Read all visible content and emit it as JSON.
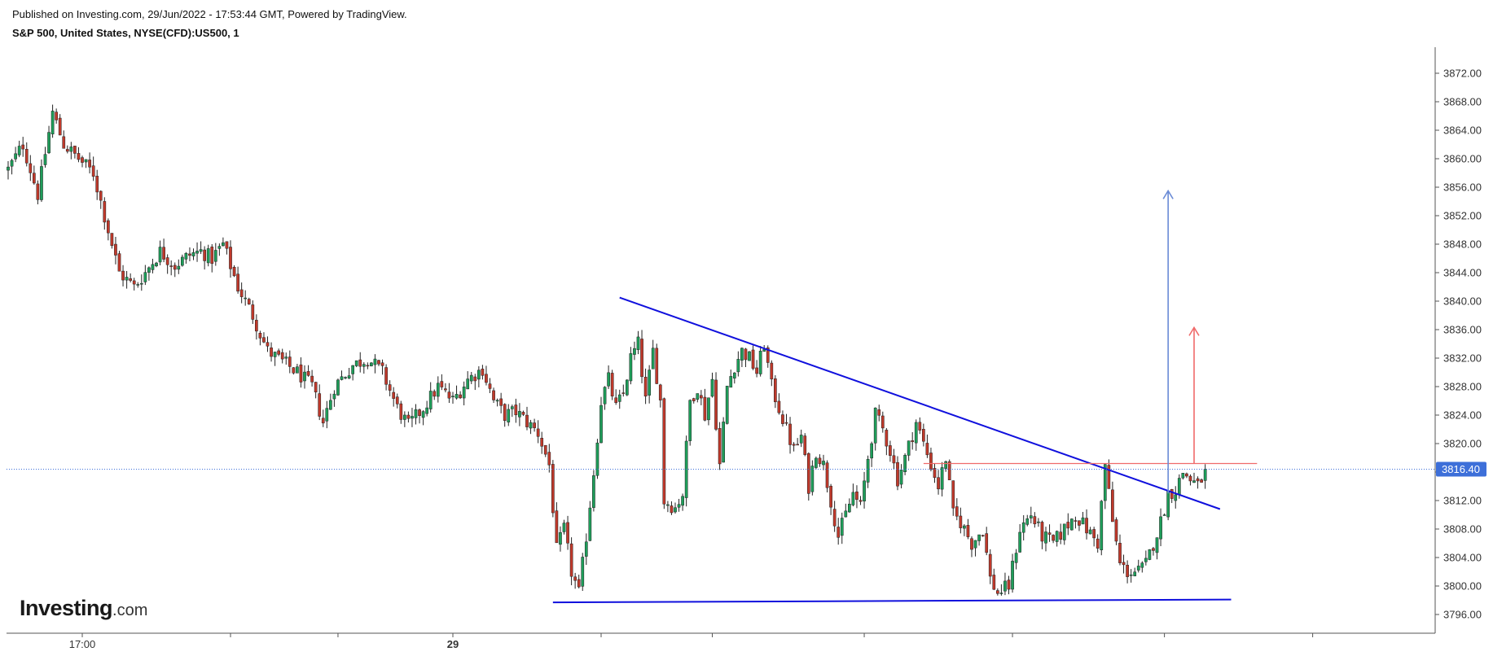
{
  "header": {
    "published": "Published on Investing.com, 29/Jun/2022 - 17:53:44 GMT, Powered by TradingView.",
    "symbol": "S&P 500, United States, NYSE(CFD):US500, 1"
  },
  "logo": {
    "main": "Investing",
    "suffix": ".com"
  },
  "colors": {
    "up": "#1e9e5a",
    "down": "#c0392b",
    "trendline": "#1010dd",
    "resistance": "#f06a6a",
    "target_blue": "#6a8bd6",
    "target_red": "#f06a6a",
    "last_price_bg": "#3d6fd9",
    "axis": "#555555"
  },
  "chart_data": {
    "type": "candlestick",
    "title": "",
    "xlabel": "",
    "ylabel": "",
    "ylim": [
      3794.0,
      3876.0
    ],
    "y_ticks": [
      "3872.00",
      "3868.00",
      "3864.00",
      "3860.00",
      "3856.00",
      "3852.00",
      "3848.00",
      "3844.00",
      "3840.00",
      "3836.00",
      "3832.00",
      "3828.00",
      "3824.00",
      "3820.00",
      "3816.00",
      "3812.00",
      "3808.00",
      "3804.00",
      "3800.00",
      "3796.00"
    ],
    "x_ticks": [
      {
        "label": "17:00",
        "bar": 20,
        "bold": false
      },
      {
        "label": "29",
        "bar": 120,
        "bold": true
      }
    ],
    "x_minor_tick_bars": [
      60,
      89,
      160,
      190,
      231,
      271,
      312,
      352
    ],
    "last_price": 3816.4,
    "last_price_label": "3816.40",
    "close_path": [
      [
        0,
        3858.5
      ],
      [
        4,
        3862.0
      ],
      [
        8,
        3855.0
      ],
      [
        12,
        3866.5
      ],
      [
        15,
        3862.0
      ],
      [
        19,
        3860.0
      ],
      [
        23,
        3858.0
      ],
      [
        26,
        3852.0
      ],
      [
        30,
        3844.0
      ],
      [
        34,
        3842.0
      ],
      [
        37,
        3844.0
      ],
      [
        41,
        3847.0
      ],
      [
        45,
        3845.0
      ],
      [
        49,
        3846.5
      ],
      [
        52,
        3847.0
      ],
      [
        55,
        3846.0
      ],
      [
        58,
        3848.0
      ],
      [
        62,
        3842.0
      ],
      [
        66,
        3838.0
      ],
      [
        70,
        3833.0
      ],
      [
        74,
        3831.5
      ],
      [
        78,
        3830.0
      ],
      [
        82,
        3828.0
      ],
      [
        85,
        3823.0
      ],
      [
        88,
        3828.0
      ],
      [
        93,
        3831.0
      ],
      [
        97,
        3832.0
      ],
      [
        101,
        3830.0
      ],
      [
        105,
        3825.0
      ],
      [
        108,
        3822.5
      ],
      [
        112,
        3825.0
      ],
      [
        116,
        3828.0
      ],
      [
        120,
        3826.0
      ],
      [
        124,
        3829.0
      ],
      [
        128,
        3830.5
      ],
      [
        131,
        3826.0
      ],
      [
        134,
        3824.0
      ],
      [
        137,
        3824.5
      ],
      [
        140,
        3823.0
      ],
      [
        143,
        3821.5
      ],
      [
        146,
        3817.0
      ],
      [
        148,
        3805.0
      ],
      [
        150,
        3808.0
      ],
      [
        152,
        3802.0
      ],
      [
        154,
        3799.0
      ],
      [
        156,
        3807.0
      ],
      [
        158,
        3816.0
      ],
      [
        160,
        3826.0
      ],
      [
        162,
        3829.0
      ],
      [
        164,
        3825.0
      ],
      [
        166,
        3827.0
      ],
      [
        168,
        3832.0
      ],
      [
        170,
        3834.0
      ],
      [
        172,
        3826.0
      ],
      [
        174,
        3833.0
      ],
      [
        176,
        3826.0
      ],
      [
        177,
        3812.0
      ],
      [
        180,
        3811.0
      ],
      [
        182,
        3813.0
      ],
      [
        184,
        3826.0
      ],
      [
        186,
        3828.0
      ],
      [
        188,
        3824.0
      ],
      [
        190,
        3829.0
      ],
      [
        192,
        3817.0
      ],
      [
        194,
        3828.0
      ],
      [
        196,
        3831.0
      ],
      [
        198,
        3833.0
      ],
      [
        200,
        3832.0
      ],
      [
        202,
        3830.0
      ],
      [
        204,
        3834.0
      ],
      [
        206,
        3828.0
      ],
      [
        208,
        3825.0
      ],
      [
        210,
        3822.0
      ],
      [
        212,
        3819.0
      ],
      [
        214,
        3821.0
      ],
      [
        216,
        3814.0
      ],
      [
        218,
        3819.0
      ],
      [
        220,
        3817.0
      ],
      [
        222,
        3812.0
      ],
      [
        224,
        3807.0
      ],
      [
        226,
        3810.0
      ],
      [
        228,
        3813.0
      ],
      [
        230,
        3811.0
      ],
      [
        232,
        3818.0
      ],
      [
        234,
        3824.0
      ],
      [
        236,
        3822.0
      ],
      [
        238,
        3819.0
      ],
      [
        240,
        3815.0
      ],
      [
        242,
        3818.0
      ],
      [
        245,
        3823.0
      ],
      [
        247,
        3820.0
      ],
      [
        249,
        3817.0
      ],
      [
        251,
        3814.0
      ],
      [
        253,
        3818.0
      ],
      [
        255,
        3810.0
      ],
      [
        257,
        3809.0
      ],
      [
        260,
        3806.0
      ],
      [
        263,
        3808.0
      ],
      [
        265,
        3801.0
      ],
      [
        267,
        3799.0
      ],
      [
        270,
        3800.0
      ],
      [
        273,
        3808.0
      ],
      [
        276,
        3810.0
      ],
      [
        279,
        3807.0
      ],
      [
        282,
        3806.0
      ],
      [
        285,
        3808.0
      ],
      [
        288,
        3810.0
      ],
      [
        291,
        3808.0
      ],
      [
        294,
        3806.0
      ],
      [
        296,
        3817.0
      ],
      [
        298,
        3809.0
      ],
      [
        300,
        3803.0
      ],
      [
        302,
        3802.0
      ],
      [
        305,
        3802.0
      ],
      [
        307,
        3803.0
      ],
      [
        309,
        3806.0
      ],
      [
        311,
        3809.0
      ],
      [
        313,
        3813.0
      ],
      [
        315,
        3813.5
      ],
      [
        317,
        3816.0
      ],
      [
        319,
        3815.0
      ],
      [
        321,
        3814.0
      ],
      [
        323,
        3816.0
      ]
    ],
    "annotations": {
      "descending_trendline": [
        [
          165,
          3840.5
        ],
        [
          327,
          3810.8
        ]
      ],
      "support_line": [
        [
          147,
          3797.7
        ],
        [
          330,
          3798.1
        ]
      ],
      "resistance_line": [
        [
          247,
          3817.2
        ],
        [
          337,
          3817.2
        ]
      ],
      "target_arrow_blue": [
        [
          313,
          3813.0
        ],
        [
          313,
          3855.5
        ]
      ],
      "target_arrow_red": [
        [
          320,
          3817.2
        ],
        [
          320,
          3836.3
        ]
      ]
    }
  }
}
